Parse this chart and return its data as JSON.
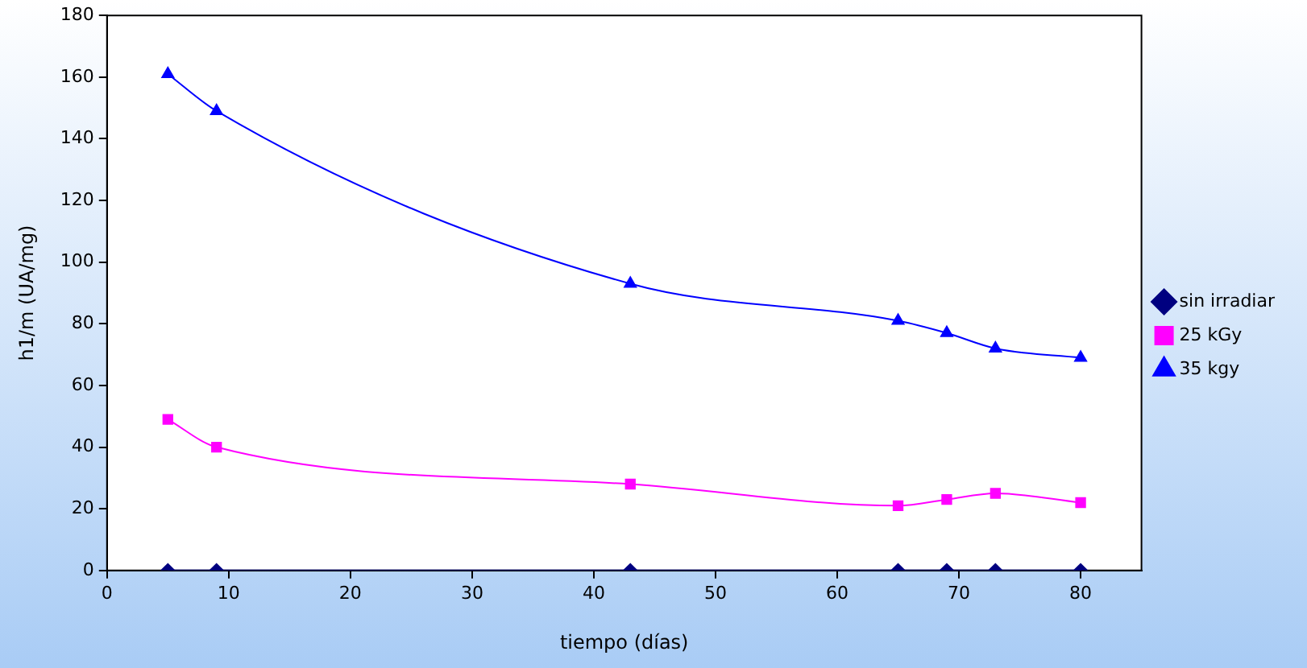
{
  "chart_data": {
    "type": "line",
    "xlabel": "tiempo (días)",
    "ylabel": "h1/m (UA/mg)",
    "x": [
      5,
      9,
      43,
      65,
      69,
      73,
      80
    ],
    "series": [
      {
        "name": "sin irradiar",
        "color": "#000080",
        "marker": "diamond",
        "values": [
          0,
          0,
          0,
          0,
          0,
          0,
          0
        ]
      },
      {
        "name": "25 kGy",
        "color": "#ff00ff",
        "marker": "square",
        "values": [
          49,
          40,
          28,
          21,
          23,
          25,
          22
        ]
      },
      {
        "name": "35 kgy",
        "color": "#0000ff",
        "marker": "triangle",
        "values": [
          161,
          149,
          93,
          81,
          77,
          72,
          69
        ]
      }
    ],
    "xlim": [
      0,
      85
    ],
    "xticks": [
      0,
      10,
      20,
      30,
      40,
      50,
      60,
      70,
      80
    ],
    "ylim": [
      0,
      180
    ],
    "yticks": [
      0,
      20,
      40,
      60,
      80,
      100,
      120,
      140,
      160,
      180
    ],
    "grid": false,
    "legend": "right"
  }
}
